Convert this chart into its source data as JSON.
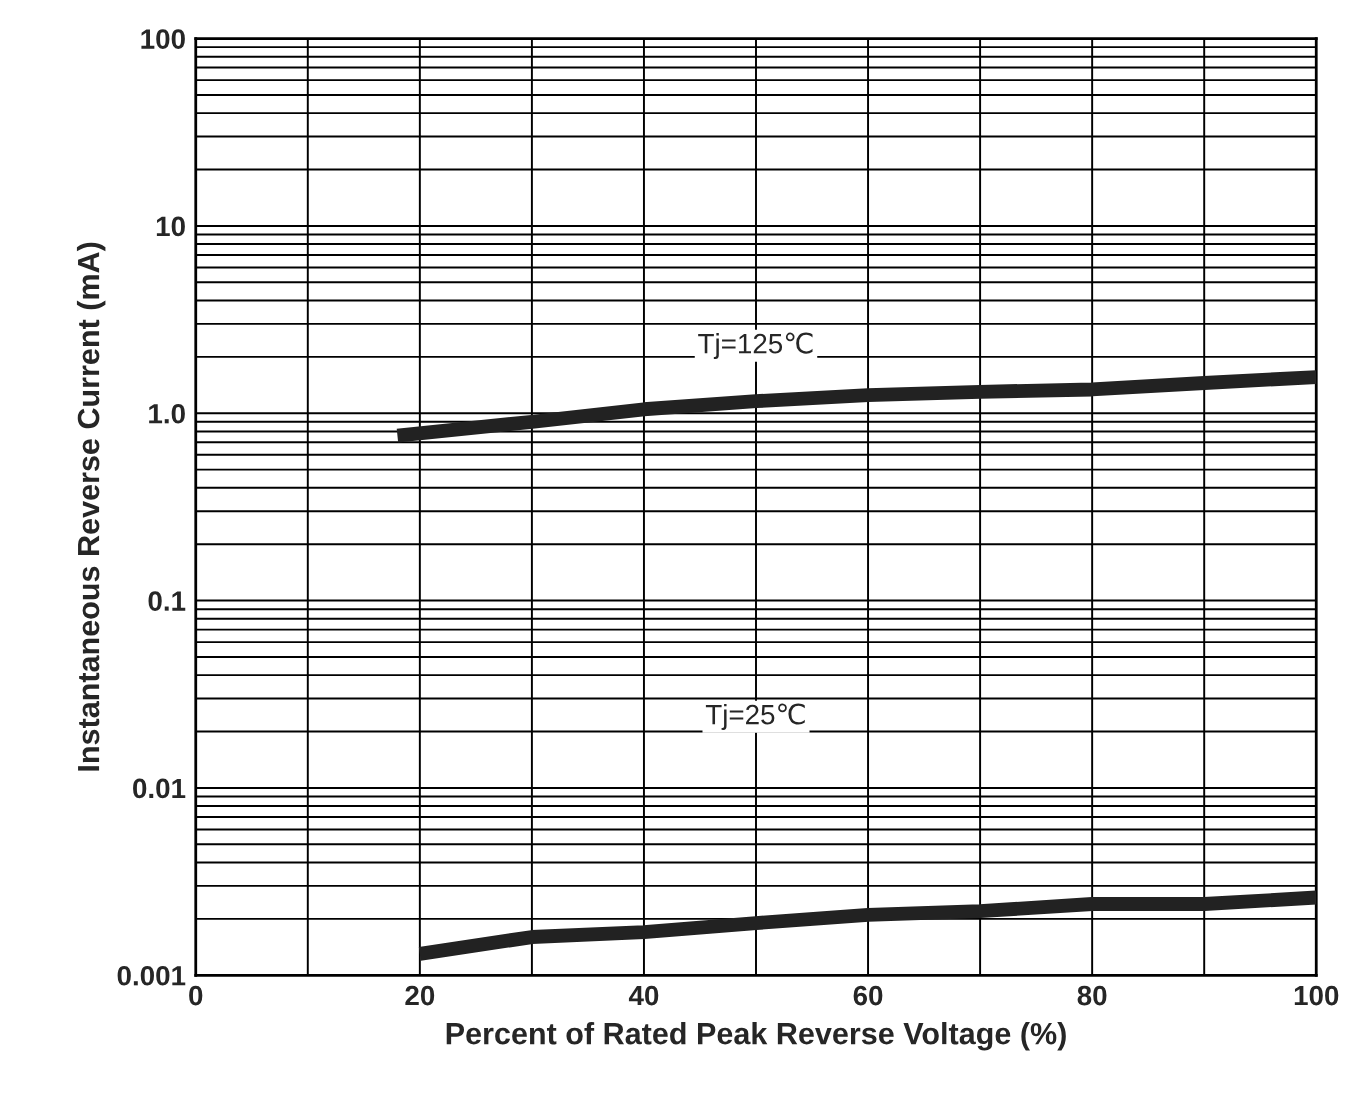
{
  "chart_data": {
    "type": "line",
    "xlabel": "Percent of Rated Peak Reverse Voltage (%)",
    "ylabel": "Instantaneous Reverse Current (mA)",
    "series": [
      {
        "color": "#222222",
        "x": [
          18,
          30,
          40,
          50,
          60,
          70,
          80,
          90,
          100
        ],
        "values": [
          0.76,
          0.9,
          1.05,
          1.16,
          1.25,
          1.3,
          1.34,
          1.45,
          1.56
        ]
      },
      {
        "color": "#222222",
        "x": [
          20,
          30,
          40,
          50,
          60,
          70,
          80,
          90,
          100
        ],
        "values": [
          0.0013,
          0.0016,
          0.0017,
          0.0019,
          0.0021,
          0.0022,
          0.0024,
          0.0024,
          0.0026
        ]
      }
    ],
    "annotations": [
      "Tj=125℃",
      "Tj=25℃"
    ],
    "log": "y",
    "xlim": [
      0,
      100
    ],
    "ylim": [
      0.001,
      100
    ],
    "xticks": [
      0,
      {
        "value": 10,
        "label": null
      },
      20,
      {
        "value": 30,
        "label": null
      },
      40,
      {
        "value": 50,
        "label": null
      },
      60,
      {
        "value": 70,
        "label": null
      },
      80,
      {
        "value": 90,
        "label": null
      },
      100
    ],
    "yticks": [
      0.001,
      0.01,
      0.1,
      {
        "value": 1,
        "label": "1.0"
      },
      10,
      100
    ],
    "grid": true,
    "legend": false,
    "marker": "none",
    "line_style": "solid"
  }
}
